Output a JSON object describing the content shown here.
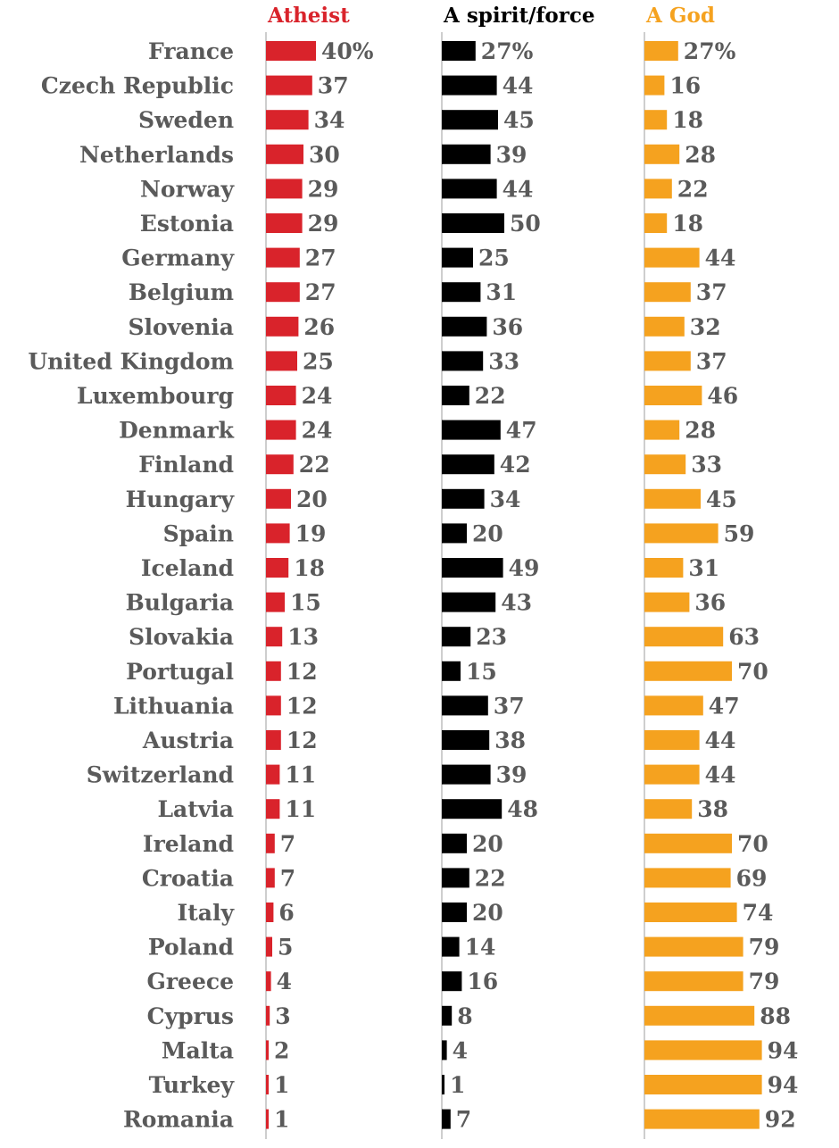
{
  "chart_data": {
    "type": "bar",
    "title": "",
    "xlabel": "",
    "ylabel": "",
    "value_suffix_first_row": "%",
    "xlim": [
      0,
      100
    ],
    "categories": [
      "France",
      "Czech Republic",
      "Sweden",
      "Netherlands",
      "Norway",
      "Estonia",
      "Germany",
      "Belgium",
      "Slovenia",
      "United Kingdom",
      "Luxembourg",
      "Denmark",
      "Finland",
      "Hungary",
      "Spain",
      "Iceland",
      "Bulgaria",
      "Slovakia",
      "Portugal",
      "Lithuania",
      "Austria",
      "Switzerland",
      "Latvia",
      "Ireland",
      "Croatia",
      "Italy",
      "Poland",
      "Greece",
      "Cyprus",
      "Malta",
      "Turkey",
      "Romania"
    ],
    "series": [
      {
        "name": "Atheist",
        "color": "#d9232b",
        "text_color": "#d9232b",
        "label_color": "#5a5a5a",
        "values": [
          40,
          37,
          34,
          30,
          29,
          29,
          27,
          27,
          26,
          25,
          24,
          24,
          22,
          20,
          19,
          18,
          15,
          13,
          12,
          12,
          12,
          11,
          11,
          7,
          7,
          6,
          5,
          4,
          3,
          2,
          1,
          1
        ]
      },
      {
        "name": "A spirit/force",
        "color": "#000000",
        "text_color": "#000000",
        "label_color": "#5a5a5a",
        "values": [
          27,
          44,
          45,
          39,
          44,
          50,
          25,
          31,
          36,
          33,
          22,
          47,
          42,
          34,
          20,
          49,
          43,
          23,
          15,
          37,
          38,
          39,
          48,
          20,
          22,
          20,
          14,
          16,
          8,
          4,
          1,
          7
        ]
      },
      {
        "name": "A God",
        "color": "#f5a21f",
        "text_color": "#f5a21f",
        "label_color": "#5a5a5a",
        "values": [
          27,
          16,
          18,
          28,
          22,
          18,
          44,
          37,
          32,
          37,
          46,
          28,
          33,
          45,
          59,
          31,
          36,
          63,
          70,
          47,
          44,
          44,
          38,
          70,
          69,
          74,
          79,
          79,
          88,
          94,
          94,
          92
        ]
      }
    ]
  }
}
